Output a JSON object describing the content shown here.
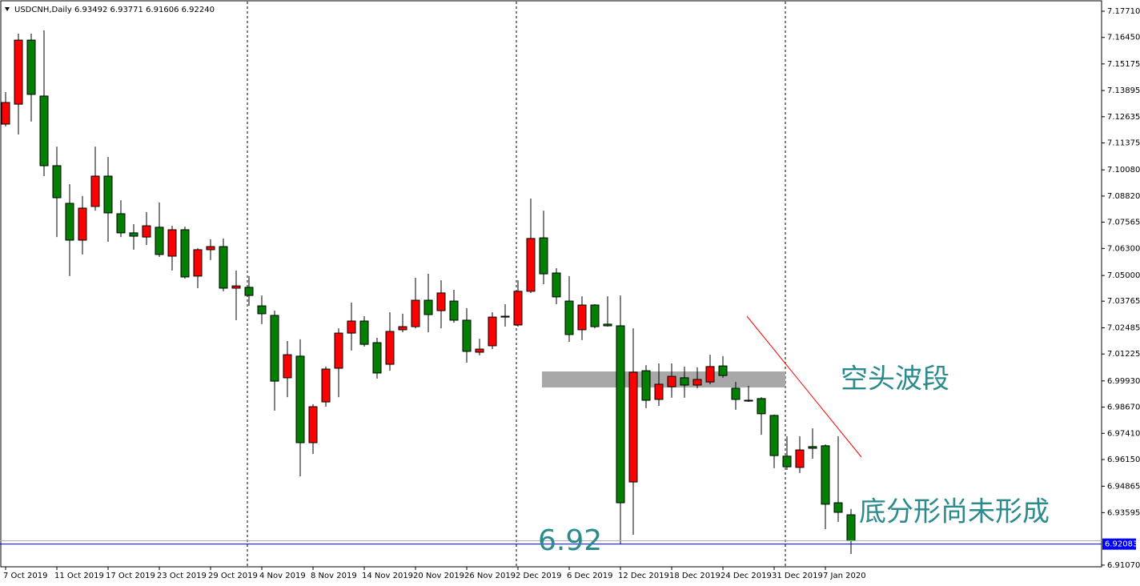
{
  "chart_data": {
    "type": "candlestick",
    "title": "USDCNH,Daily  6.93492 6.93771 6.91606 6.92240",
    "categories": [
      "7 Oct 2019",
      null,
      null,
      null,
      "11 Oct 2019",
      null,
      null,
      null,
      "17 Oct 2019",
      null,
      null,
      null,
      "23 Oct 2019",
      null,
      null,
      null,
      "29 Oct 2019",
      null,
      null,
      null,
      "4 Nov 2019",
      null,
      null,
      null,
      "8 Nov 2019",
      null,
      null,
      null,
      "14 Nov 2019",
      null,
      null,
      null,
      "20 Nov 2019",
      null,
      null,
      null,
      "26 Nov 2019",
      null,
      null,
      null,
      "2 Dec 2019",
      null,
      null,
      null,
      "6 Dec 2019",
      null,
      null,
      null,
      "12 Dec 2019",
      null,
      null,
      null,
      "18 Dec 2019",
      null,
      null,
      null,
      "24 Dec 2019",
      null,
      null,
      null,
      "31 Dec 2019",
      null,
      null,
      null,
      "7 Jan 2020",
      null,
      null
    ],
    "open": [
      7.1228,
      7.1324,
      7.1632,
      7.1363,
      7.1028,
      7.0847,
      7.067,
      7.0832,
      7.0978,
      7.0797,
      7.0705,
      7.0685,
      7.0732,
      7.0593,
      7.072,
      7.0497,
      7.0624,
      7.0639,
      7.0439,
      7.0443,
      7.0354,
      7.0308,
      7.0008,
      7.0112,
      6.9696,
      6.9892,
      7.0054,
      7.0223,
      7.0281,
      7.0177,
      7.0073,
      7.0239,
      7.0254,
      7.0381,
      7.0331,
      7.0377,
      7.0285,
      7.0131,
      7.0162,
      7.03,
      7.0262,
      7.0424,
      7.0681,
      7.0512,
      7.0377,
      7.0239,
      7.0358,
      7.0266,
      7.0258,
      6.9507,
      7.0042,
      6.9904,
      6.9965,
      7.0008,
      6.9973,
      6.9988,
      7.0065,
      6.9958,
      6.99,
      6.9908,
      6.9827,
      6.9631,
      6.9577,
      6.9677,
      6.9681,
      6.9407,
      6.93492
    ],
    "high": [
      7.1382,
      7.1663,
      7.1663,
      7.1679,
      7.112,
      7.0939,
      7.0882,
      7.112,
      7.107,
      7.0862,
      7.0747,
      7.0805,
      7.0851,
      7.0739,
      7.0735,
      7.0631,
      7.0674,
      7.0678,
      7.0524,
      7.0497,
      7.0404,
      7.0331,
      7.0185,
      7.0193,
      6.9881,
      7.0062,
      7.0246,
      7.037,
      7.0304,
      7.02,
      7.0323,
      7.0316,
      7.0489,
      7.0508,
      7.0477,
      7.0431,
      7.0343,
      7.0196,
      7.0323,
      7.0362,
      7.0477,
      7.087,
      7.0812,
      7.0535,
      7.0497,
      7.04,
      7.0362,
      7.04,
      7.0404,
      7.0246,
      7.0069,
      7.0077,
      7.0077,
      7.0062,
      7.0058,
      7.0119,
      7.0112,
      6.9988,
      6.9969,
      6.9915,
      6.9831,
      6.9727,
      6.9727,
      6.9765,
      6.9688,
      6.9727,
      6.93771
    ],
    "low": [
      7.1217,
      7.1178,
      7.124,
      7.0978,
      7.0685,
      7.0497,
      7.0601,
      7.0812,
      7.0662,
      7.0685,
      7.0624,
      7.0647,
      7.0589,
      7.0524,
      7.0485,
      7.0439,
      7.0574,
      7.0424,
      7.0285,
      7.0354,
      7.0266,
      6.985,
      6.9915,
      6.9534,
      6.9642,
      6.9869,
      6.9915,
      7.0139,
      7.0158,
      7.0004,
      7.0042,
      7.0227,
      7.0246,
      7.0227,
      7.0246,
      7.0273,
      7.0081,
      7.0116,
      7.0146,
      7.0254,
      7.0254,
      7.0416,
      7.0458,
      7.0362,
      7.0181,
      7.0189,
      7.0246,
      7.0254,
      6.9207,
      6.9253,
      6.9862,
      6.9873,
      6.9912,
      6.9912,
      6.9958,
      6.9977,
      7.0008,
      6.9854,
      6.9892,
      6.9734,
      6.9573,
      6.9565,
      6.955,
      6.9619,
      6.928,
      6.9315,
      6.91606
    ],
    "close": [
      7.1332,
      7.1632,
      7.1371,
      7.1028,
      7.0874,
      7.067,
      7.0824,
      7.0978,
      7.0801,
      7.0705,
      7.0689,
      7.0739,
      7.0601,
      7.072,
      7.0493,
      7.0624,
      7.0639,
      7.0439,
      7.045,
      7.0404,
      7.0316,
      6.9992,
      7.0119,
      6.9696,
      6.9869,
      7.005,
      7.0223,
      7.0281,
      7.0169,
      7.0031,
      7.0231,
      7.0254,
      7.0381,
      7.0312,
      7.0416,
      7.0285,
      7.0135,
      7.0146,
      7.03,
      7.0304,
      7.0424,
      7.0678,
      7.0508,
      7.0397,
      7.0216,
      7.0358,
      7.0254,
      7.0258,
      6.9407,
      7.0035,
      6.99,
      6.9977,
      7.0015,
      6.9973,
      7.0,
      7.0062,
      7.0019,
      6.9904,
      6.9896,
      6.9835,
      6.9634,
      6.958,
      6.9661,
      6.9669,
      6.94,
      6.9361,
      6.9224
    ],
    "up_color": "#ff0000",
    "down_color": "#008000",
    "ylim": [
      6.90991,
      7.18249
    ],
    "yticks": [
      {
        "value": 7.1771,
        "label": "7.17710"
      },
      {
        "value": 7.1645,
        "label": "7.16450"
      },
      7.15175,
      7.13895,
      7.12635,
      7.11375,
      {
        "value": 7.1008,
        "label": "7.10080"
      },
      {
        "value": 7.0882,
        "label": "7.08820"
      },
      7.07565,
      {
        "value": 7.063,
        "label": "7.06300"
      },
      {
        "value": 7.05,
        "label": "7.05000"
      },
      7.03765,
      7.02485,
      7.01225,
      {
        "value": 6.9993,
        "label": "6.99930"
      },
      {
        "value": 6.9867,
        "label": "6.98670"
      },
      {
        "value": 6.9741,
        "label": "6.97410"
      },
      {
        "value": 6.9615,
        "label": "6.96150"
      },
      6.94865,
      6.93595,
      {
        "value": 6.9107,
        "label": "6.91070"
      }
    ],
    "grid": false,
    "price_line": {
      "value": 6.92083,
      "color": "#0000ff"
    },
    "annotations": [
      "空头波段",
      "底分形尚未形成",
      "6.92"
    ]
  }
}
